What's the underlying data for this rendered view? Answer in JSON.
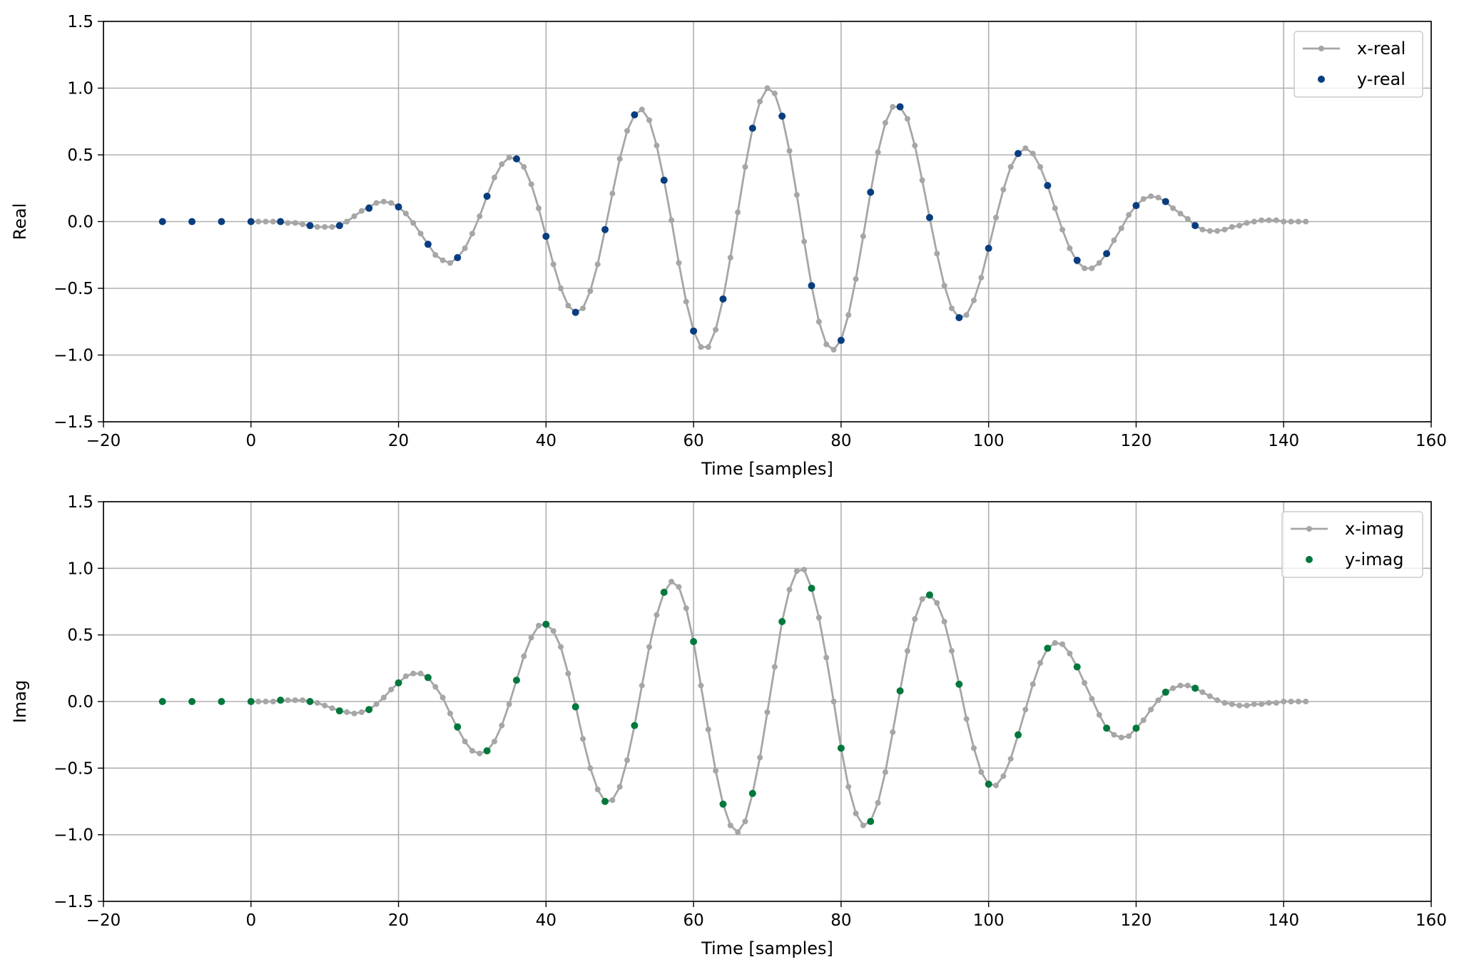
{
  "chart_data": [
    {
      "type": "line",
      "ylabel": "Real",
      "xlabel": "Time [samples]",
      "xlim": [
        -20,
        160
      ],
      "ylim": [
        -1.5,
        1.5
      ],
      "xticks": [
        "−20",
        "0",
        "20",
        "40",
        "60",
        "80",
        "100",
        "120",
        "140",
        "160"
      ],
      "yticks": [
        "−1.5",
        "−1.0",
        "−0.5",
        "0.0",
        "0.5",
        "1.0",
        "1.5"
      ],
      "grid": true,
      "legend_position": "top-right",
      "series": [
        {
          "name": "x-real",
          "style": "line-with-markers",
          "color": "#a6a6a6",
          "x": [
            0,
            1,
            2,
            3,
            4,
            5,
            6,
            7,
            8,
            9,
            10,
            11,
            12,
            13,
            14,
            15,
            16,
            17,
            18,
            19,
            20,
            21,
            22,
            23,
            24,
            25,
            26,
            27,
            28,
            29,
            30,
            31,
            32,
            33,
            34,
            35,
            36,
            37,
            38,
            39,
            40,
            41,
            42,
            43,
            44,
            45,
            46,
            47,
            48,
            49,
            50,
            51,
            52,
            53,
            54,
            55,
            56,
            57,
            58,
            59,
            60,
            61,
            62,
            63,
            64,
            65,
            66,
            67,
            68,
            69,
            70,
            71,
            72,
            73,
            74,
            75,
            76,
            77,
            78,
            79,
            80,
            81,
            82,
            83,
            84,
            85,
            86,
            87,
            88,
            89,
            90,
            91,
            92,
            93,
            94,
            95,
            96,
            97,
            98,
            99,
            100,
            101,
            102,
            103,
            104,
            105,
            106,
            107,
            108,
            109,
            110,
            111,
            112,
            113,
            114,
            115,
            116,
            117,
            118,
            119,
            120,
            121,
            122,
            123,
            124,
            125,
            126,
            127,
            128,
            129,
            130,
            131,
            132,
            133,
            134,
            135,
            136,
            137,
            138,
            139,
            140,
            141,
            142,
            143
          ],
          "y": [
            0,
            0,
            0,
            0,
            0,
            -0.01,
            -0.01,
            -0.02,
            -0.03,
            -0.04,
            -0.04,
            -0.04,
            -0.03,
            0,
            0.04,
            0.08,
            0.11,
            0.14,
            0.15,
            0.14,
            0.11,
            0.06,
            -0.01,
            -0.09,
            -0.17,
            -0.25,
            -0.29,
            -0.31,
            -0.27,
            -0.2,
            -0.09,
            0.04,
            0.19,
            0.33,
            0.43,
            0.48,
            0.47,
            0.41,
            0.28,
            0.1,
            -0.11,
            -0.32,
            -0.5,
            -0.63,
            -0.68,
            -0.65,
            -0.52,
            -0.32,
            -0.06,
            0.21,
            0.47,
            0.68,
            0.8,
            0.84,
            0.76,
            0.57,
            0.31,
            0.01,
            -0.31,
            -0.6,
            -0.82,
            -0.94,
            -0.94,
            -0.81,
            -0.58,
            -0.27,
            0.07,
            0.41,
            0.7,
            0.9,
            1,
            0.96,
            0.79,
            0.53,
            0.2,
            -0.15,
            -0.48,
            -0.75,
            -0.92,
            -0.96,
            -0.89,
            -0.7,
            -0.43,
            -0.11,
            0.22,
            0.52,
            0.74,
            0.86,
            0.86,
            0.77,
            0.57,
            0.31,
            0.03,
            -0.24,
            -0.48,
            -0.65,
            -0.72,
            -0.7,
            -0.59,
            -0.42,
            -0.2,
            0.03,
            0.24,
            0.41,
            0.51,
            0.55,
            0.51,
            0.41,
            0.27,
            0.1,
            -0.06,
            -0.2,
            -0.3,
            -0.35,
            -0.35,
            -0.31,
            -0.24,
            -0.14,
            -0.05,
            0.05,
            0.12,
            0.17,
            0.19,
            0.18,
            0.15,
            0.1,
            0.06,
            0.02,
            -0.03,
            -0.06,
            -0.07,
            -0.07,
            -0.06,
            -0.04,
            -0.03,
            -0.01,
            0,
            0.01,
            0.01,
            0.01,
            0,
            0,
            0,
            0
          ]
        },
        {
          "name": "y-real",
          "style": "markers",
          "color": "#083d7f",
          "x": [
            -12,
            -8,
            -4,
            0,
            4,
            8,
            12,
            16,
            20,
            24,
            28,
            32,
            36,
            40,
            44,
            48,
            52,
            56,
            60,
            64,
            68,
            72,
            76,
            80,
            84,
            88,
            92,
            96,
            100,
            104,
            108,
            112,
            116,
            120,
            124,
            128
          ],
          "y": [
            0,
            0,
            0,
            0,
            0,
            -0.03,
            -0.03,
            0.1,
            0.11,
            -0.17,
            -0.27,
            0.19,
            0.47,
            -0.11,
            -0.68,
            -0.06,
            0.8,
            0.31,
            -0.82,
            -0.58,
            0.7,
            0.79,
            -0.48,
            -0.89,
            0.22,
            0.86,
            0.03,
            -0.72,
            -0.2,
            0.51,
            0.27,
            -0.29,
            -0.24,
            0.12,
            0.15,
            -0.03
          ]
        }
      ]
    },
    {
      "type": "line",
      "ylabel": "Imag",
      "xlabel": "Time [samples]",
      "xlim": [
        -20,
        160
      ],
      "ylim": [
        -1.5,
        1.5
      ],
      "xticks": [
        "−20",
        "0",
        "20",
        "40",
        "60",
        "80",
        "100",
        "120",
        "140",
        "160"
      ],
      "yticks": [
        "−1.5",
        "−1.0",
        "−0.5",
        "0.0",
        "0.5",
        "1.0",
        "1.5"
      ],
      "grid": true,
      "legend_position": "top-right",
      "series": [
        {
          "name": "x-imag",
          "style": "line-with-markers",
          "color": "#a6a6a6",
          "x": [
            0,
            1,
            2,
            3,
            4,
            5,
            6,
            7,
            8,
            9,
            10,
            11,
            12,
            13,
            14,
            15,
            16,
            17,
            18,
            19,
            20,
            21,
            22,
            23,
            24,
            25,
            26,
            27,
            28,
            29,
            30,
            31,
            32,
            33,
            34,
            35,
            36,
            37,
            38,
            39,
            40,
            41,
            42,
            43,
            44,
            45,
            46,
            47,
            48,
            49,
            50,
            51,
            52,
            53,
            54,
            55,
            56,
            57,
            58,
            59,
            60,
            61,
            62,
            63,
            64,
            65,
            66,
            67,
            68,
            69,
            70,
            71,
            72,
            73,
            74,
            75,
            76,
            77,
            78,
            79,
            80,
            81,
            82,
            83,
            84,
            85,
            86,
            87,
            88,
            89,
            90,
            91,
            92,
            93,
            94,
            95,
            96,
            97,
            98,
            99,
            100,
            101,
            102,
            103,
            104,
            105,
            106,
            107,
            108,
            109,
            110,
            111,
            112,
            113,
            114,
            115,
            116,
            117,
            118,
            119,
            120,
            121,
            122,
            123,
            124,
            125,
            126,
            127,
            128,
            129,
            130,
            131,
            132,
            133,
            134,
            135,
            136,
            137,
            138,
            139,
            140,
            141,
            142,
            143
          ],
          "y": [
            0,
            0,
            0,
            0,
            0.01,
            0.01,
            0.01,
            0.01,
            0,
            -0.01,
            -0.03,
            -0.05,
            -0.07,
            -0.08,
            -0.09,
            -0.08,
            -0.06,
            -0.02,
            0.03,
            0.09,
            0.14,
            0.19,
            0.21,
            0.21,
            0.18,
            0.11,
            0.03,
            -0.09,
            -0.2,
            -0.3,
            -0.37,
            -0.39,
            -0.37,
            -0.3,
            -0.18,
            -0.02,
            0.16,
            0.34,
            0.48,
            0.57,
            0.58,
            0.53,
            0.41,
            0.21,
            -0.03,
            -0.28,
            -0.5,
            -0.66,
            -0.75,
            -0.74,
            -0.64,
            -0.44,
            -0.18,
            0.12,
            0.41,
            0.65,
            0.82,
            0.9,
            0.86,
            0.7,
            0.45,
            0.12,
            -0.21,
            -0.52,
            -0.77,
            -0.93,
            -0.98,
            -0.9,
            -0.69,
            -0.42,
            -0.08,
            0.26,
            0.6,
            0.84,
            0.98,
            0.99,
            0.85,
            0.63,
            0.33,
            0,
            -0.35,
            -0.64,
            -0.84,
            -0.93,
            -0.9,
            -0.76,
            -0.53,
            -0.23,
            0.08,
            0.38,
            0.62,
            0.77,
            0.8,
            0.74,
            0.6,
            0.38,
            0.13,
            -0.13,
            -0.35,
            -0.53,
            -0.62,
            -0.63,
            -0.56,
            -0.43,
            -0.25,
            -0.06,
            0.13,
            0.29,
            0.4,
            0.44,
            0.43,
            0.36,
            0.26,
            0.14,
            0.02,
            -0.1,
            -0.2,
            -0.25,
            -0.27,
            -0.26,
            -0.2,
            -0.14,
            -0.06,
            0.01,
            0.07,
            0.1,
            0.12,
            0.12,
            0.1,
            0.07,
            0.04,
            0.01,
            -0.01,
            -0.02,
            -0.03,
            -0.03,
            -0.02,
            -0.02,
            -0.01,
            -0.01,
            0,
            0,
            0,
            0
          ]
        },
        {
          "name": "y-imag",
          "style": "markers",
          "color": "#00783c",
          "x": [
            -12,
            -8,
            -4,
            0,
            4,
            8,
            12,
            16,
            20,
            24,
            28,
            32,
            36,
            40,
            44,
            48,
            52,
            56,
            60,
            64,
            68,
            72,
            76,
            80,
            84,
            88,
            92,
            96,
            100,
            104,
            108,
            112,
            116,
            120,
            124,
            128
          ],
          "y": [
            0,
            0,
            0,
            0,
            0.01,
            0,
            -0.07,
            -0.06,
            0.14,
            0.18,
            -0.19,
            -0.37,
            0.16,
            0.58,
            -0.04,
            -0.75,
            -0.18,
            0.82,
            0.45,
            -0.77,
            -0.69,
            0.6,
            0.85,
            -0.35,
            -0.9,
            0.08,
            0.8,
            0.13,
            -0.62,
            -0.25,
            0.4,
            0.26,
            -0.2,
            -0.2,
            0.07,
            0.1
          ]
        }
      ]
    }
  ]
}
